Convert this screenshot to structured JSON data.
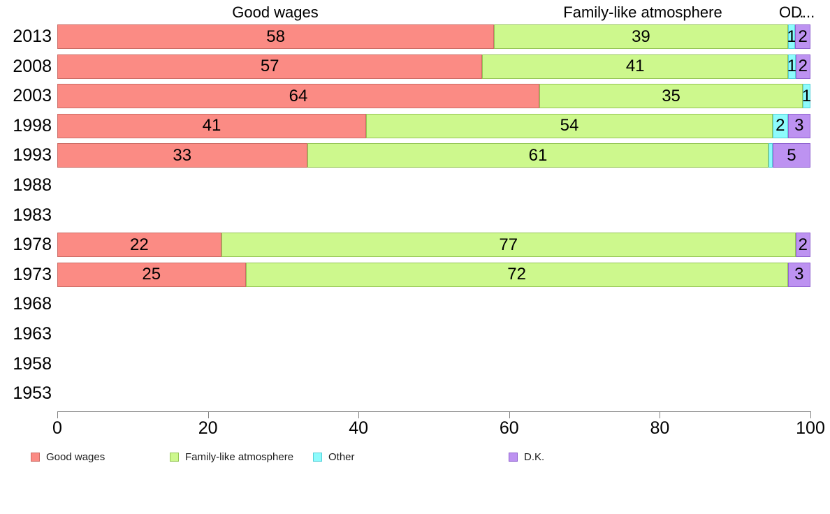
{
  "chart_data": {
    "type": "bar",
    "orientation": "horizontal",
    "stacked": true,
    "unit": "percent",
    "title": "",
    "column_headers": [
      "Good wages",
      "Family-like atmosphere",
      "O...",
      "D..."
    ],
    "categories": [
      "2013",
      "2008",
      "2003",
      "1998",
      "1993",
      "1988",
      "1983",
      "1978",
      "1973",
      "1968",
      "1963",
      "1958",
      "1953"
    ],
    "series": [
      {
        "name": "Good wages",
        "color": "#FB8B84",
        "border_color": "#CC6B64",
        "values": [
          58,
          57,
          64,
          41,
          33,
          null,
          null,
          22,
          25,
          null,
          null,
          null,
          null
        ]
      },
      {
        "name": "Family-like atmosphere",
        "color": "#CDF88D",
        "border_color": "#95C556",
        "values": [
          39,
          41,
          35,
          54,
          61,
          null,
          null,
          77,
          72,
          null,
          null,
          null,
          null
        ]
      },
      {
        "name": "Other",
        "color": "#8DFBFC",
        "border_color": "#55CFD8",
        "values": [
          1,
          1,
          1,
          2,
          0.5,
          null,
          null,
          null,
          null,
          null,
          null,
          null,
          null
        ],
        "labels": [
          "1",
          "1",
          "1",
          "2",
          "",
          null,
          null,
          null,
          null,
          null,
          null,
          null,
          null
        ]
      },
      {
        "name": "D.K.",
        "color": "#BD92F1",
        "border_color": "#8F62CF",
        "values": [
          2,
          2,
          null,
          3,
          5,
          null,
          null,
          2,
          3,
          null,
          null,
          null,
          null
        ]
      }
    ],
    "xlim": [
      0,
      100
    ],
    "xticks": [
      0,
      20,
      40,
      60,
      80,
      100
    ],
    "legend": {
      "position": "bottom",
      "items": [
        "Good wages",
        "Family-like atmosphere",
        "Other",
        "D.K."
      ]
    },
    "axis_color": "#808080",
    "label_color": "#000000",
    "grid": false
  }
}
